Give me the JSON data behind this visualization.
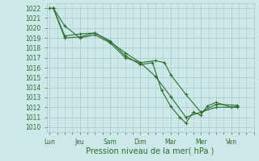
{
  "background_color": "#cce8e8",
  "grid_color": "#aacccc",
  "line_color": "#2d6e2d",
  "ylim": [
    1009.5,
    1022.5
  ],
  "yticks": [
    1010,
    1011,
    1012,
    1013,
    1014,
    1015,
    1016,
    1017,
    1018,
    1019,
    1020,
    1021,
    1022
  ],
  "xtick_labels": [
    "Lun",
    "Jeu",
    "Sam",
    "Dim",
    "Mar",
    "Mer",
    "Ven"
  ],
  "xtick_positions": [
    0,
    1,
    2,
    3,
    4,
    5,
    6
  ],
  "xlim": [
    -0.1,
    6.5
  ],
  "xlabel": "Pression niveau de la mer( hPa )",
  "xlabel_fontsize": 7,
  "tick_fontsize": 5.5,
  "series": [
    {
      "x": [
        0.0,
        0.12,
        0.5,
        1.0,
        1.5,
        2.0,
        2.5,
        3.0,
        3.5,
        4.0,
        4.5,
        5.5,
        6.2
      ],
      "y": [
        1022,
        1022,
        1020.2,
        1019.0,
        1019.3,
        1018.5,
        1017.0,
        1016.5,
        1015.1,
        1013.1,
        1011.0,
        1012.0,
        1012.0
      ]
    },
    {
      "x": [
        0.12,
        0.5,
        1.0,
        1.5,
        2.0,
        2.5,
        3.0,
        3.5,
        3.8,
        4.0,
        4.5,
        5.0,
        5.5,
        6.2
      ],
      "y": [
        1022.0,
        1019.2,
        1019.4,
        1019.5,
        1018.6,
        1017.5,
        1016.5,
        1016.7,
        1016.5,
        1015.3,
        1013.3,
        1011.5,
        1012.3,
        1012.2
      ]
    },
    {
      "x": [
        0.12,
        0.5,
        1.0,
        1.5,
        2.0,
        2.5,
        3.0,
        3.4,
        3.7,
        4.0,
        4.3,
        4.5,
        4.75,
        5.0,
        5.2,
        5.5,
        6.0,
        6.2
      ],
      "y": [
        1022.0,
        1019.0,
        1019.1,
        1019.5,
        1018.7,
        1017.2,
        1016.3,
        1016.5,
        1013.7,
        1012.1,
        1011.0,
        1010.4,
        1011.5,
        1011.2,
        1012.1,
        1012.5,
        1012.0,
        1012.1
      ]
    }
  ]
}
